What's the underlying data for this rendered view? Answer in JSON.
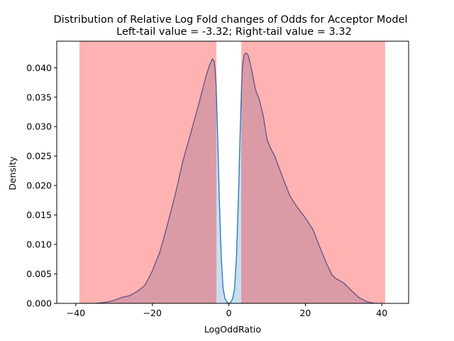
{
  "chart_data": {
    "type": "area",
    "title": "Distribution of Relative Log Fold changes of Odds for Acceptor Model",
    "subtitle": "Left-tail value = -3.32;  Right-tail value = 3.32",
    "xlabel": "LogOddRatio",
    "ylabel": "Density",
    "xlim": [
      -45,
      47
    ],
    "ylim": [
      0,
      0.0445
    ],
    "x_ticks": [
      -40,
      -20,
      0,
      20,
      40
    ],
    "x_tick_labels": [
      "−40",
      "−20",
      "0",
      "20",
      "40"
    ],
    "y_ticks": [
      0.0,
      0.005,
      0.01,
      0.015,
      0.02,
      0.025,
      0.03,
      0.035,
      0.04
    ],
    "y_tick_labels": [
      "0.000",
      "0.005",
      "0.010",
      "0.015",
      "0.020",
      "0.025",
      "0.030",
      "0.035",
      "0.040"
    ],
    "grid": false,
    "tail_regions": [
      {
        "x_from": -39,
        "x_to": -3.32,
        "color": "#ff0000",
        "alpha": 0.3
      },
      {
        "x_from": 3.32,
        "x_to": 40.8,
        "color": "#ff0000",
        "alpha": 0.3
      }
    ],
    "density_fill_color": "#aecde6",
    "density_line_color": "#1f77b4",
    "series": [
      {
        "x": [
          -39,
          -35,
          -32,
          -30,
          -28,
          -26,
          -24,
          -22,
          -20,
          -18,
          -16,
          -14,
          -12,
          -10,
          -8,
          -6,
          -5,
          -4.3,
          -3.8,
          -3.5,
          -3.32,
          -3,
          -2.5,
          -2,
          -1.5,
          -1,
          -0.5,
          0,
          0.5,
          1,
          1.5,
          2,
          2.5,
          3,
          3.32,
          3.6,
          4,
          4.5,
          5,
          5.5,
          6,
          7,
          8,
          9,
          10,
          11,
          12,
          14,
          16,
          18,
          20,
          22,
          24,
          25.5,
          27,
          28,
          30,
          32,
          34,
          36,
          38,
          40
        ],
        "values": [
          0.0,
          0.0,
          0.0002,
          0.0005,
          0.001,
          0.0013,
          0.002,
          0.003,
          0.0055,
          0.0088,
          0.0135,
          0.0185,
          0.0242,
          0.0288,
          0.0335,
          0.0385,
          0.0405,
          0.0415,
          0.041,
          0.039,
          0.037,
          0.03,
          0.018,
          0.008,
          0.0025,
          0.0008,
          0.0002,
          0.0,
          0.0002,
          0.0008,
          0.0025,
          0.008,
          0.018,
          0.03,
          0.037,
          0.0405,
          0.0422,
          0.0425,
          0.0422,
          0.041,
          0.0395,
          0.0362,
          0.0345,
          0.0318,
          0.0278,
          0.0262,
          0.025,
          0.0215,
          0.0182,
          0.0162,
          0.0145,
          0.0125,
          0.0092,
          0.0068,
          0.0048,
          0.0042,
          0.0035,
          0.0022,
          0.001,
          0.0003,
          0.0,
          0.0
        ]
      }
    ]
  }
}
